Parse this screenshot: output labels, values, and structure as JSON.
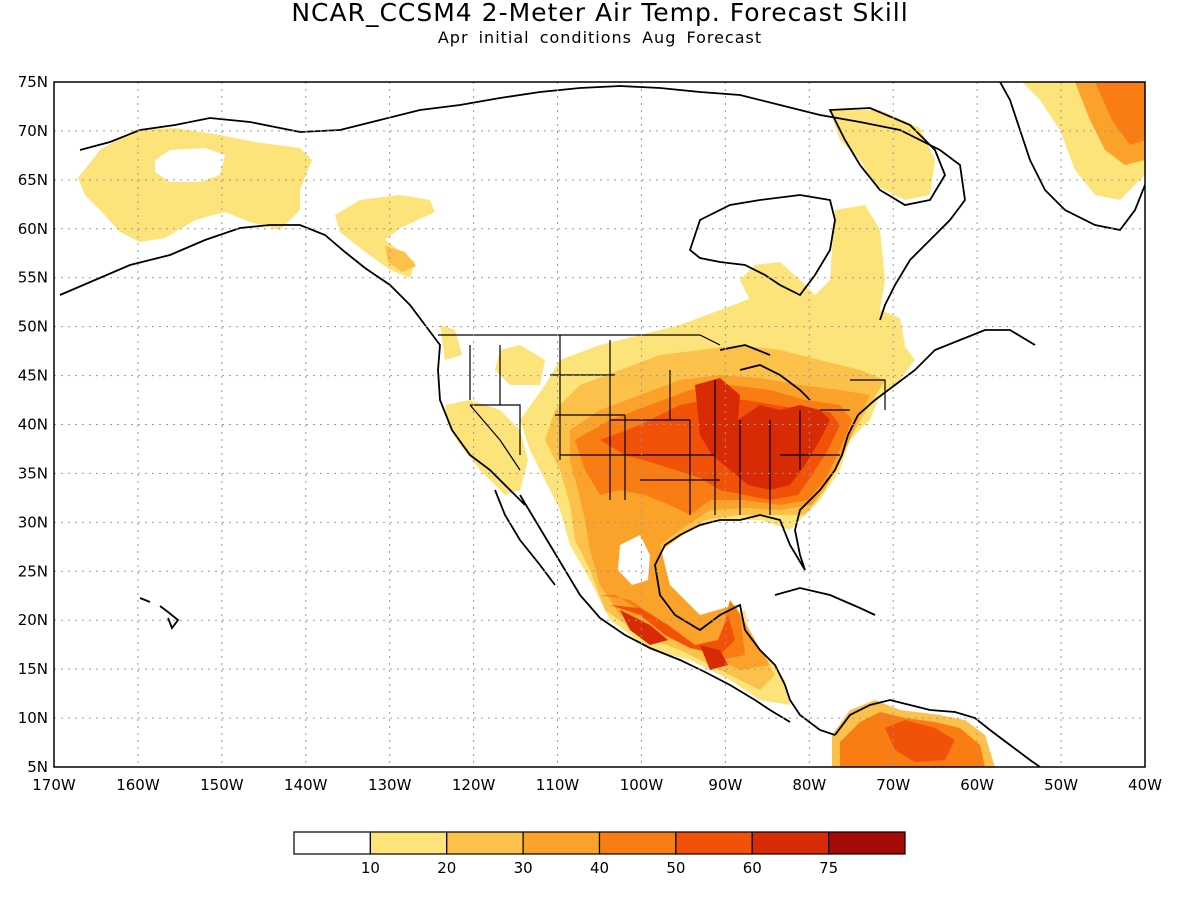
{
  "title": "NCAR_CCSM4 2-Meter Air Temp. Forecast Skill",
  "subtitle_initial": "Apr initial conditions",
  "subtitle_forecast": "Aug Forecast",
  "map": {
    "lon_range": [
      -170,
      -40
    ],
    "lat_range": [
      5,
      75
    ],
    "lon_labels": [
      "170W",
      "160W",
      "150W",
      "140W",
      "130W",
      "120W",
      "110W",
      "100W",
      "90W",
      "80W",
      "70W",
      "60W",
      "50W",
      "40W"
    ],
    "lat_labels": [
      "75N",
      "70N",
      "65N",
      "60N",
      "55N",
      "50N",
      "45N",
      "40N",
      "35N",
      "30N",
      "25N",
      "20N",
      "15N",
      "10N",
      "5N"
    ],
    "gridlines": "dotted"
  },
  "colorbar": {
    "labels": [
      "10",
      "20",
      "30",
      "40",
      "50",
      "60",
      "75"
    ],
    "colors": [
      "#ffffff",
      "#fde47a",
      "#fcc14a",
      "#fba22a",
      "#f97d13",
      "#f25208",
      "#d92a06",
      "#a40b06"
    ]
  }
}
